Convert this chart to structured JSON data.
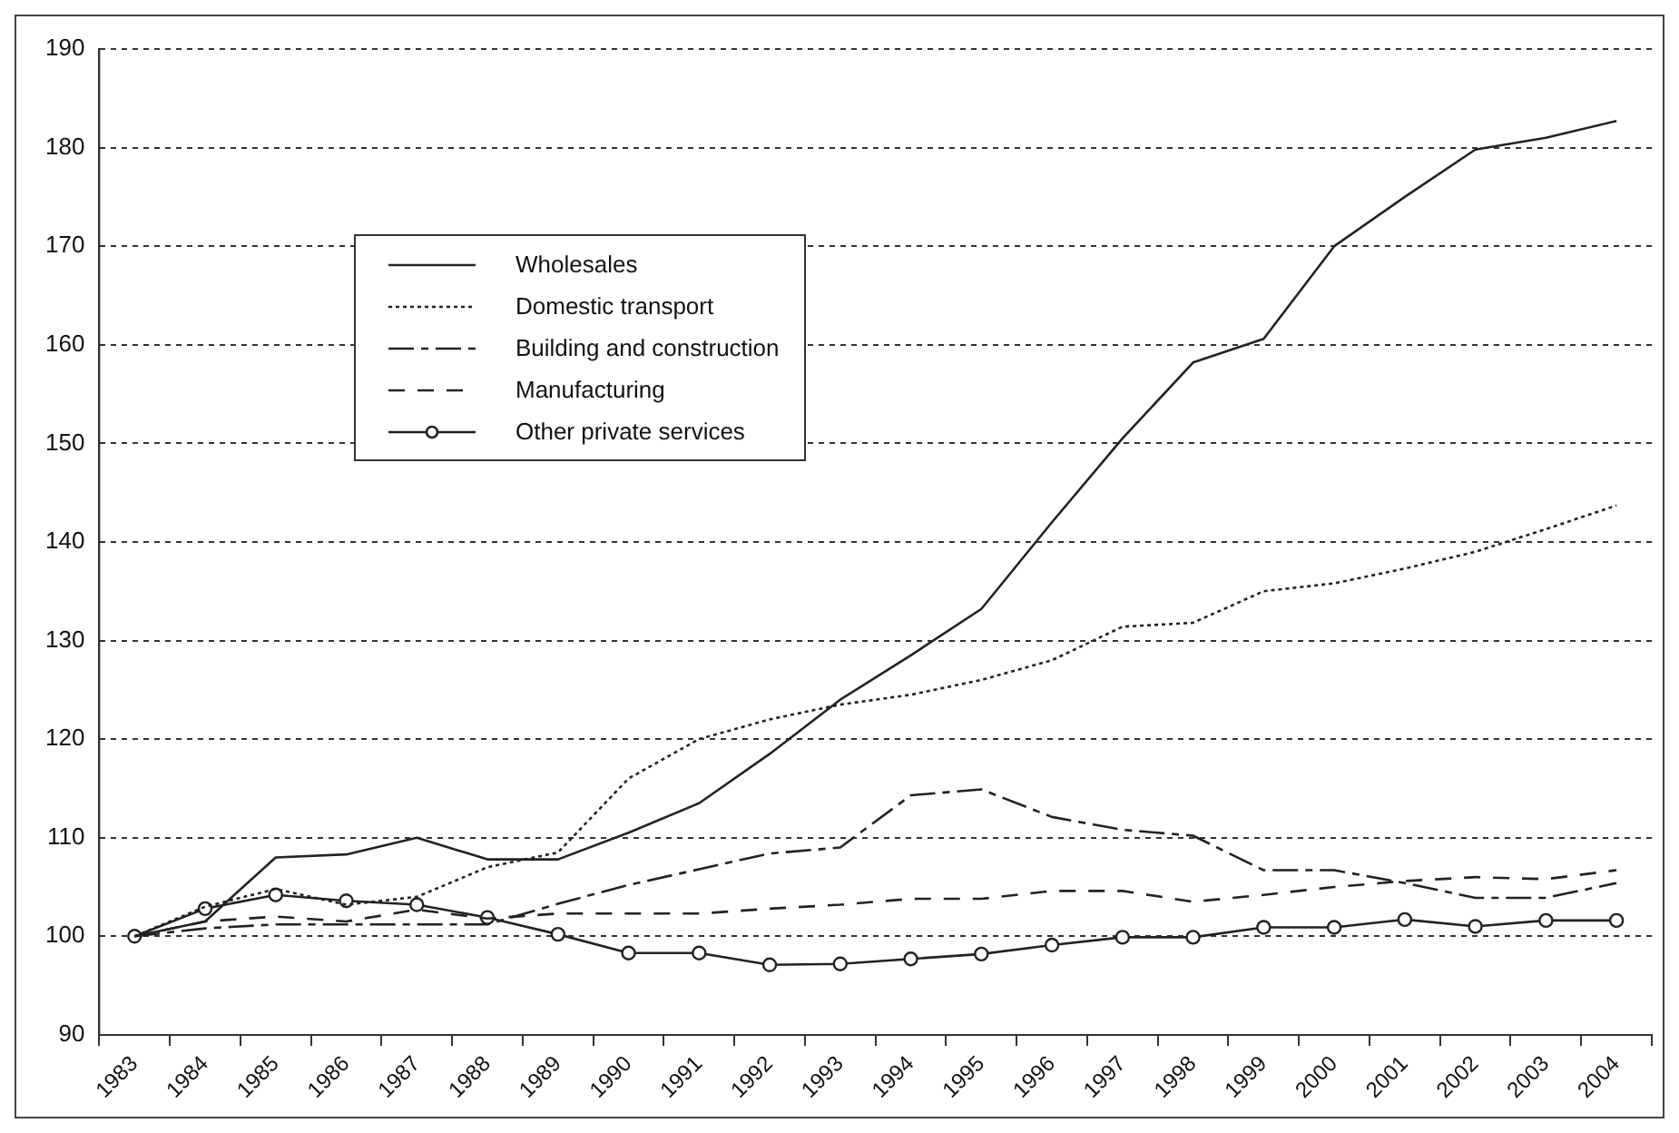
{
  "chart_data": {
    "type": "line",
    "categories": [
      "1983",
      "1984",
      "1985",
      "1986",
      "1987",
      "1988",
      "1989",
      "1990",
      "1991",
      "1992",
      "1993",
      "1994",
      "1995",
      "1996",
      "1997",
      "1998",
      "1999",
      "2000",
      "2001",
      "2002",
      "2003",
      "2004"
    ],
    "series": [
      {
        "name": "Wholesales",
        "color": "#222222",
        "line_style": "solid",
        "marker": "none",
        "values": [
          100,
          101.5,
          108,
          108.3,
          110,
          107.8,
          107.8,
          110.5,
          113.5,
          118.5,
          124,
          128.5,
          133.2,
          142,
          150.5,
          158.2,
          160.6,
          170,
          175,
          179.8,
          181,
          182.7
        ]
      },
      {
        "name": "Domestic transport",
        "color": "#222222",
        "line_style": "dotted",
        "marker": "none",
        "values": [
          100,
          103,
          104.8,
          103.2,
          104,
          107,
          108.5,
          116,
          120,
          122,
          123.5,
          124.5,
          126,
          128,
          131.4,
          131.8,
          135,
          135.8,
          137.3,
          139,
          141.3,
          143.7
        ]
      },
      {
        "name": "Building and construction",
        "color": "#222222",
        "line_style": "dashed",
        "marker": "none",
        "values": [
          100,
          100.8,
          101.2,
          101.2,
          101.2,
          101.2,
          103.3,
          105.2,
          106.8,
          108.4,
          109,
          114.3,
          114.9,
          112.1,
          110.8,
          110.2,
          106.7,
          106.7,
          105.4,
          103.9,
          103.9,
          105.4
        ]
      },
      {
        "name": "Manufacturing",
        "color": "#222222",
        "line_style": "dashed",
        "marker": "none",
        "values": [
          100,
          101.5,
          102,
          101.5,
          102.7,
          101.8,
          102.3,
          102.3,
          102.3,
          102.8,
          103.2,
          103.8,
          103.8,
          104.6,
          104.6,
          103.5,
          104.2,
          105,
          105.6,
          106,
          105.8,
          106.7
        ]
      },
      {
        "name": "Other private services",
        "color": "#222222",
        "line_style": "solid",
        "marker": "circle",
        "values": [
          100,
          102.8,
          104.2,
          103.6,
          103.2,
          101.9,
          100.2,
          98.3,
          98.3,
          97.1,
          97.2,
          97.7,
          98.2,
          99.1,
          99.9,
          99.9,
          100.9,
          100.9,
          101.7,
          101,
          101.6,
          101.6
        ]
      }
    ],
    "ylim": [
      90,
      190
    ],
    "yticks": [
      90,
      100,
      110,
      120,
      130,
      140,
      150,
      160,
      170,
      180,
      190
    ],
    "grid": "y",
    "legend": "top left"
  }
}
